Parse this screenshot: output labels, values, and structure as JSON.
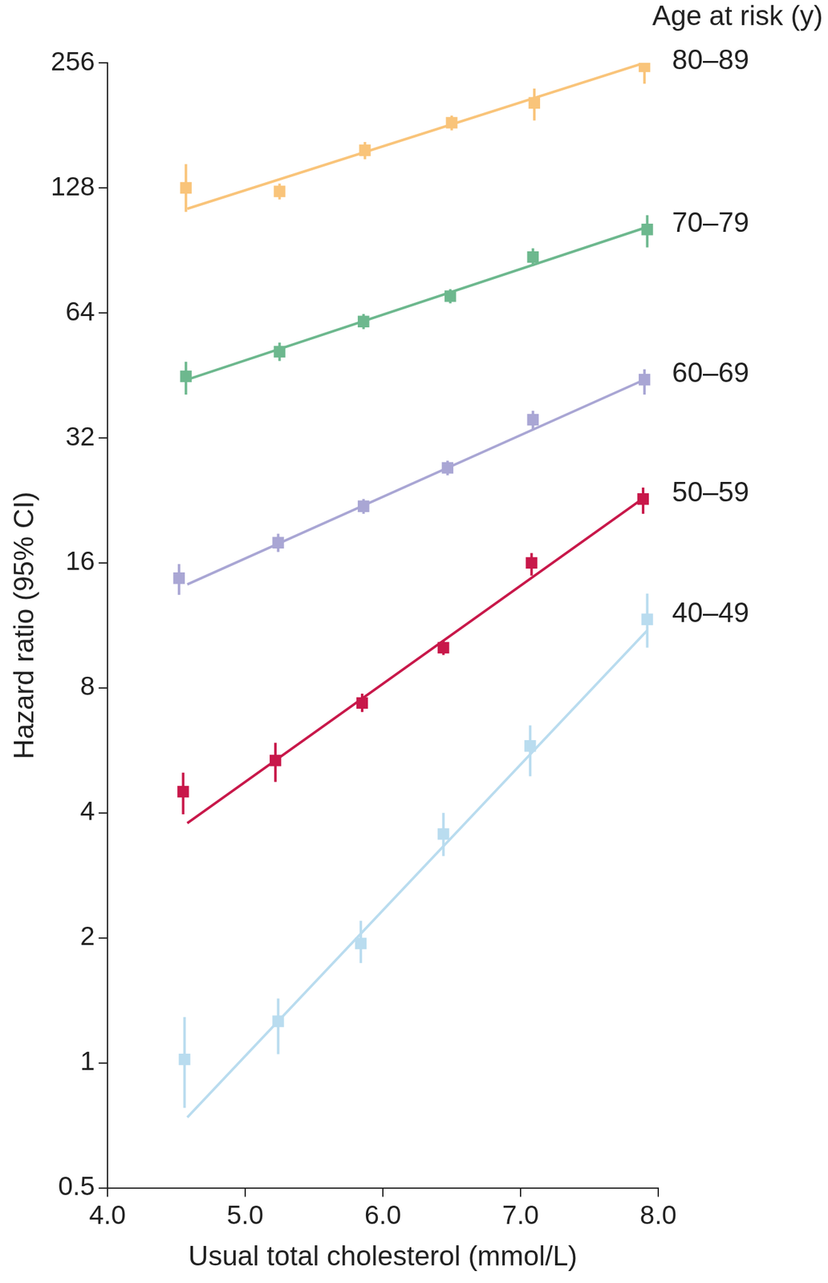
{
  "chart_data": {
    "type": "scatter",
    "x_label": "Usual total cholesterol (mmol/L)",
    "y_label": "Hazard ratio (95% CI)",
    "series_label_title": "Age at risk (y)",
    "log": "y",
    "grid": false,
    "xlim": [
      4.0,
      8.0
    ],
    "xticks": [
      {
        "value": 4,
        "label": "4.0"
      },
      {
        "value": 5,
        "label": "5.0"
      },
      {
        "value": 6,
        "label": "6.0"
      },
      {
        "value": 7,
        "label": "7.0"
      },
      {
        "value": 8,
        "label": "8.0"
      }
    ],
    "ylim": [
      0.5,
      256
    ],
    "yticks": [
      0.5,
      1,
      2,
      4,
      8,
      16,
      32,
      64,
      128,
      256
    ],
    "marker": "square",
    "series": [
      {
        "name": "80–89",
        "color": "#f9c47a",
        "x": [
          4.57,
          5.25,
          5.87,
          6.5,
          7.1,
          7.9
        ],
        "values": [
          128,
          125.5,
          157.6,
          183.6,
          205,
          251
        ],
        "ci_low": [
          112,
          120,
          150,
          176,
          186,
          228
        ],
        "ci_high": [
          146,
          131,
          165,
          191,
          222,
          284
        ],
        "fit": {
          "x": [
            4.58,
            7.9
          ],
          "values": [
            114,
            256
          ]
        }
      },
      {
        "name": "70–79",
        "color": "#6db88e",
        "x": [
          4.57,
          5.25,
          5.86,
          6.49,
          7.09,
          7.92
        ],
        "values": [
          45.0,
          51.6,
          61.0,
          70.2,
          87.2,
          101.6
        ],
        "ci_low": [
          40.7,
          49.0,
          58.5,
          67.5,
          83.0,
          92
        ],
        "ci_high": [
          48.8,
          54.3,
          63.6,
          73.0,
          91.5,
          110
        ],
        "fit": {
          "x": [
            4.58,
            7.9
          ],
          "values": [
            44.2,
            102.5
          ]
        }
      },
      {
        "name": "60–69",
        "color": "#a9a6d4",
        "x": [
          4.52,
          5.24,
          5.86,
          6.47,
          7.09,
          7.9
        ],
        "values": [
          14.7,
          17.9,
          21.9,
          27.1,
          35.4,
          44.2
        ],
        "ci_low": [
          13.4,
          17.0,
          21.0,
          26.0,
          33.6,
          40.7
        ],
        "ci_high": [
          15.9,
          18.8,
          22.8,
          28.2,
          37.2,
          46.8
        ],
        "fit": {
          "x": [
            4.58,
            7.9
          ],
          "values": [
            14.2,
            44.2
          ]
        }
      },
      {
        "name": "50–59",
        "color": "#c8184a",
        "x": [
          4.55,
          5.22,
          5.85,
          6.44,
          7.08,
          7.89
        ],
        "values": [
          4.5,
          5.35,
          7.36,
          10.0,
          16.0,
          22.8
        ],
        "ci_low": [
          3.97,
          4.75,
          7.0,
          9.6,
          14.9,
          21.0
        ],
        "ci_high": [
          5.0,
          5.9,
          7.75,
          10.4,
          16.9,
          24.3
        ],
        "fit": {
          "x": [
            4.58,
            7.9
          ],
          "values": [
            3.78,
            23
          ]
        }
      },
      {
        "name": "40–49",
        "color": "#b9dcef",
        "x": [
          4.56,
          5.24,
          5.84,
          6.44,
          7.07,
          7.92
        ],
        "values": [
          1.02,
          1.26,
          1.94,
          3.56,
          5.8,
          11.7
        ],
        "ci_low": [
          0.78,
          1.05,
          1.74,
          3.15,
          4.9,
          10.0
        ],
        "ci_high": [
          1.29,
          1.43,
          2.2,
          4.0,
          6.5,
          13.5
        ],
        "fit": {
          "x": [
            4.58,
            7.92
          ],
          "values": [
            0.74,
            11.0
          ]
        }
      }
    ]
  }
}
